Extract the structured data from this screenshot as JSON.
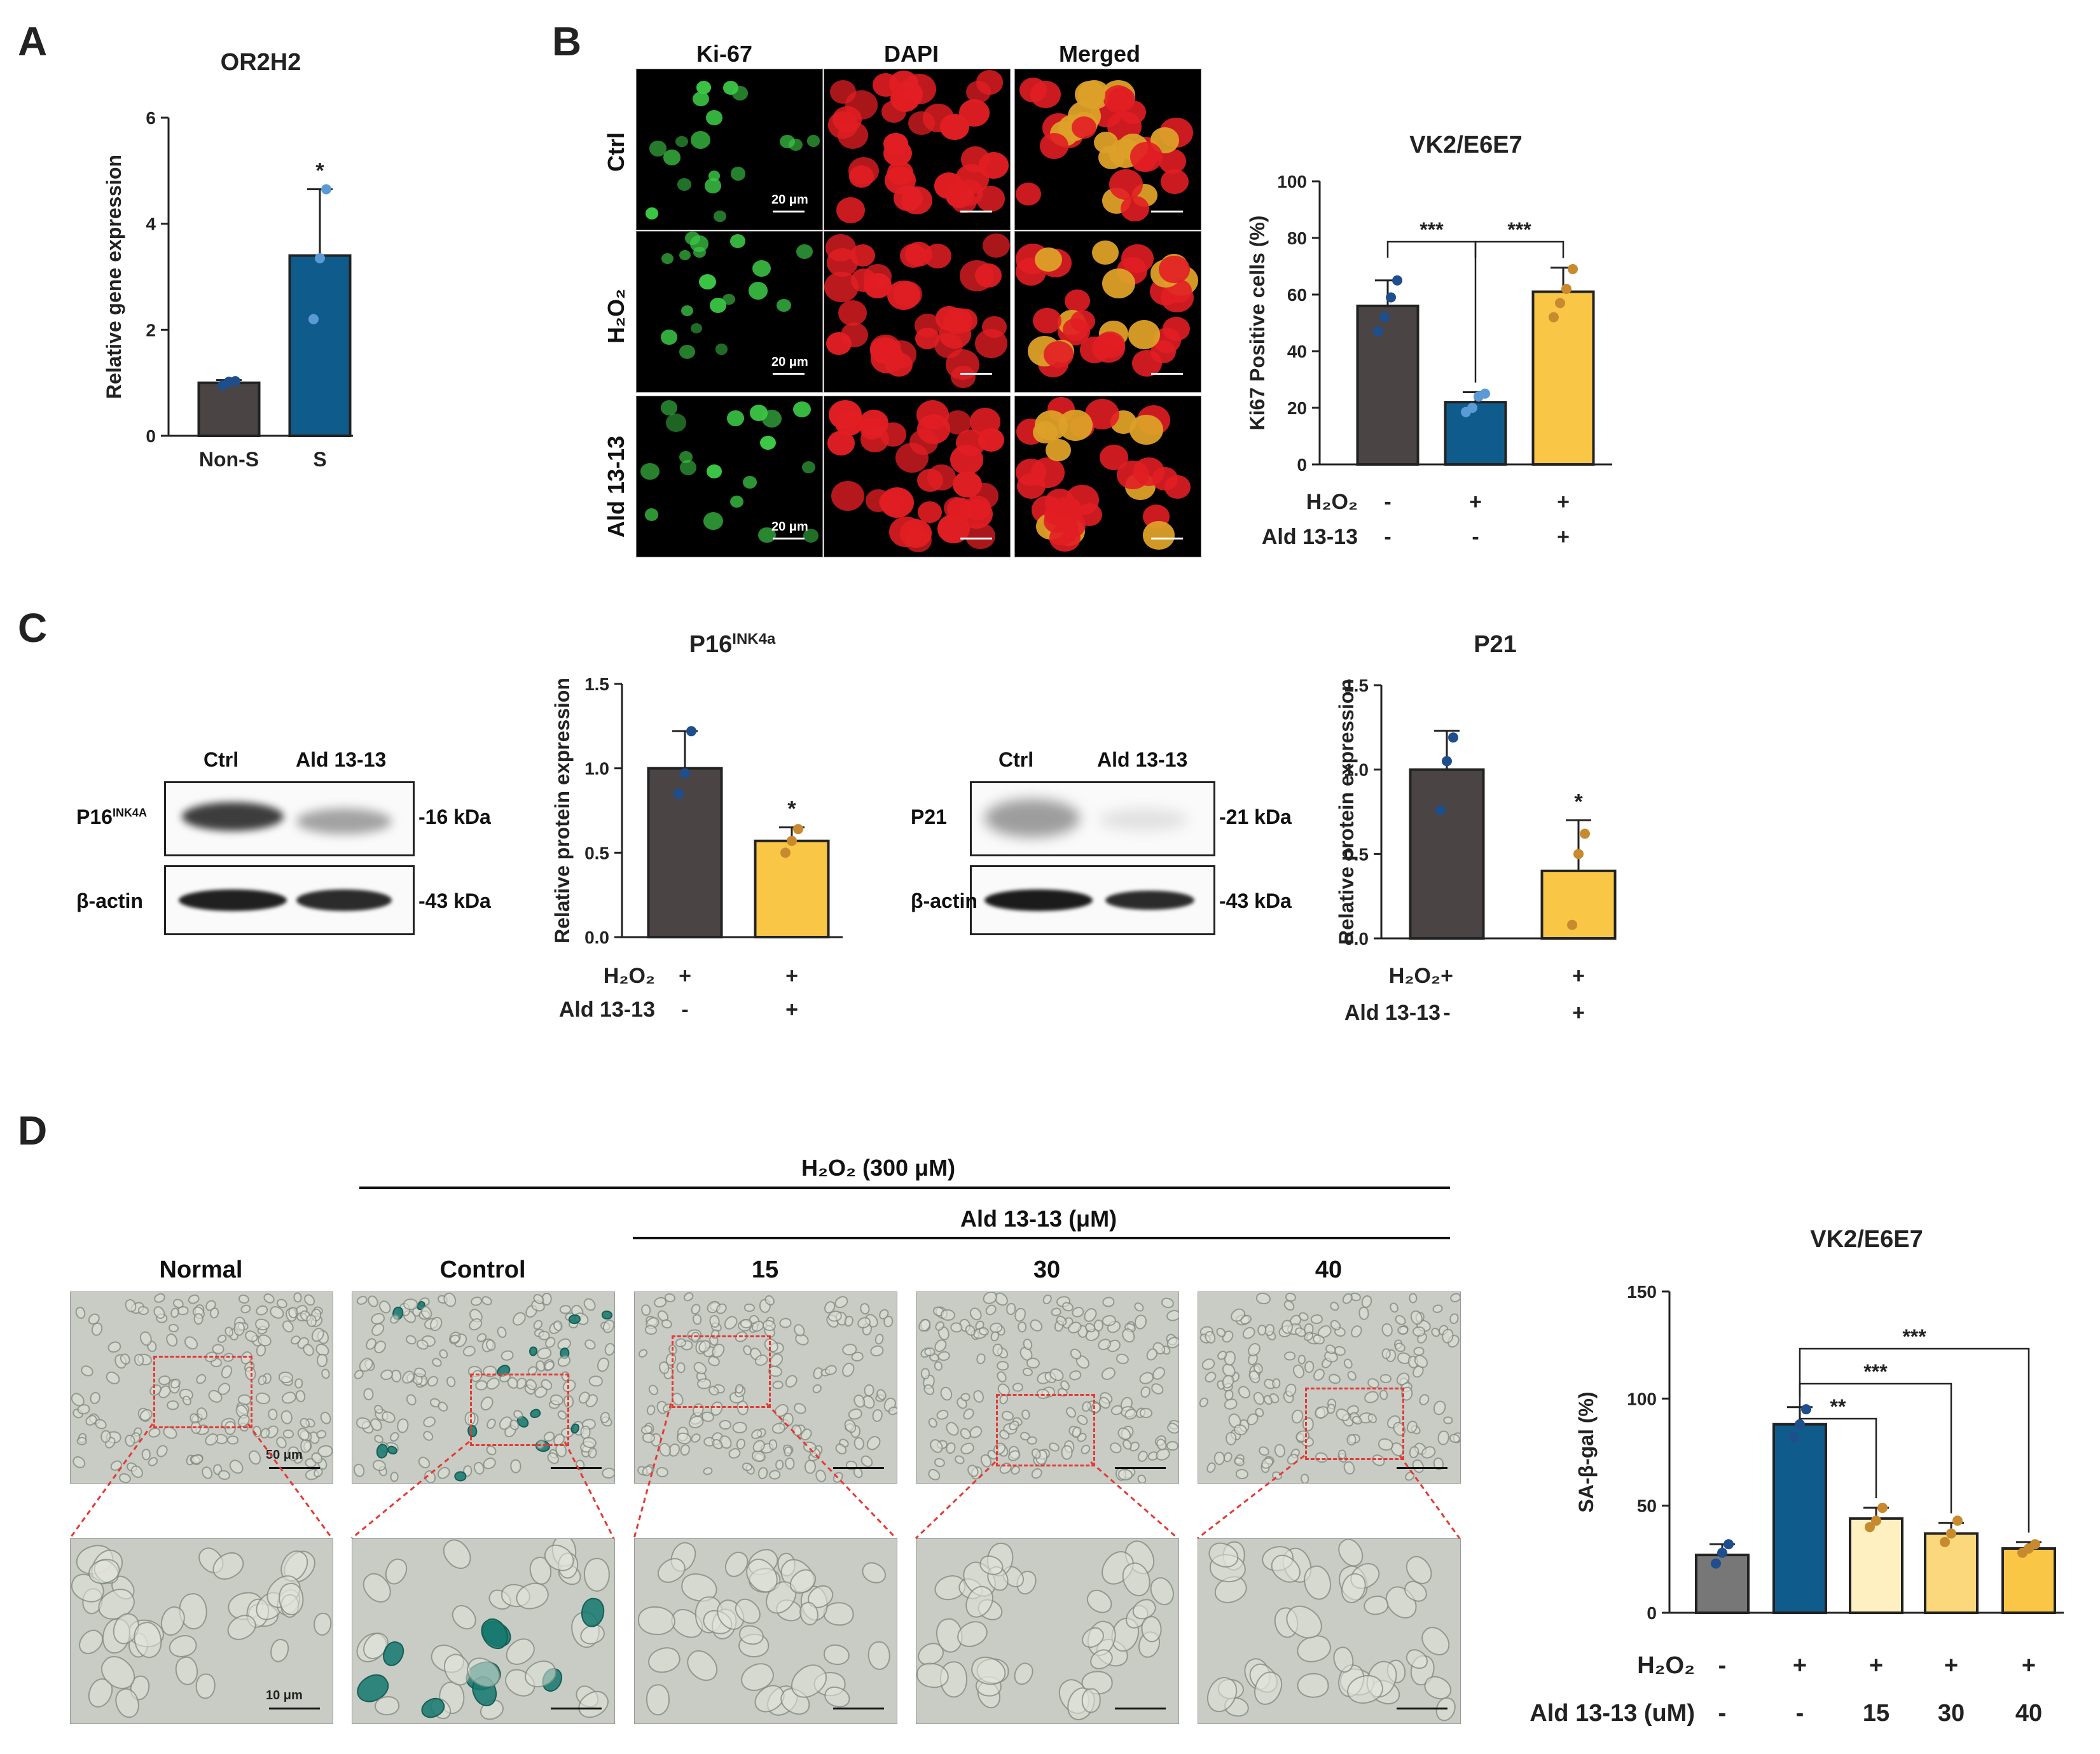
{
  "panels": {
    "A": {
      "letter": "A"
    },
    "B": {
      "letter": "B"
    },
    "C": {
      "letter": "C"
    },
    "D": {
      "letter": "D"
    }
  },
  "microscopy_B": {
    "columns": [
      "Ki-67",
      "DAPI",
      "Merged"
    ],
    "rows": [
      "Ctrl",
      "H₂O₂",
      "Ald 13-13"
    ],
    "scale": "20 μm"
  },
  "blots": {
    "p16": {
      "lanes": [
        "Ctrl",
        "Ald 13-13"
      ],
      "target": "P16",
      "target_sup": "INK4A",
      "control": "β-actin",
      "target_kda": "-16 kDa",
      "control_kda": "-43 kDa"
    },
    "p21": {
      "lanes": [
        "Ctrl",
        "Ald 13-13"
      ],
      "target": "P21",
      "control": "β-actin",
      "target_kda": "-21 kDa",
      "control_kda": "-43 kDa"
    }
  },
  "panel_D": {
    "h2o2_header": "H₂O₂ (300 μM)",
    "ald_header": "Ald 13-13 (μM)",
    "columns": [
      "Normal",
      "Control",
      "15",
      "30",
      "40"
    ],
    "scale_top": "50 μm",
    "scale_bottom": "10 μm"
  },
  "colors": {
    "dark_grey": "#4a4444",
    "blue": "#0f5c8c",
    "yellow": "#f9c646",
    "yellow_pale": "#fff0c2",
    "yellow_mid": "#fbd87c",
    "grey_D": "#777777",
    "blue_dot": "#1f4e8c",
    "lightblue_dot": "#5b9bd5",
    "brown_dot": "#c88a2e"
  },
  "chart_data": [
    {
      "id": "A",
      "type": "bar",
      "title": "OR2H2",
      "ylabel": "Relative gene expression",
      "categories": [
        "Non-S",
        "S"
      ],
      "values": [
        1.0,
        3.4
      ],
      "errors": [
        0.05,
        1.25
      ],
      "points": [
        [
          0.95,
          1.02,
          1.03
        ],
        [
          2.2,
          3.35,
          4.65
        ]
      ],
      "ylim": [
        0,
        6
      ],
      "yticks": [
        "0",
        "2",
        "4",
        "6"
      ],
      "significance": [
        "",
        "*"
      ]
    },
    {
      "id": "B",
      "type": "bar",
      "title": "VK2/E6E7",
      "ylabel": "Ki67 Positive cells (%)",
      "categories": [
        "1",
        "2",
        "3"
      ],
      "values": [
        56,
        22,
        61
      ],
      "errors": [
        9,
        3.5,
        8.5
      ],
      "points": [
        [
          47,
          52,
          59,
          65
        ],
        [
          18.5,
          20,
          24,
          25
        ],
        [
          52,
          57,
          62,
          69
        ]
      ],
      "ylim": [
        0,
        100
      ],
      "yticks": [
        "0",
        "20",
        "40",
        "60",
        "80",
        "100"
      ],
      "brackets": [
        {
          "from": 0,
          "to": 1,
          "label": "***"
        },
        {
          "from": 1,
          "to": 2,
          "label": "***"
        }
      ],
      "condition_rows": [
        {
          "label": "H₂O₂",
          "values": [
            "-",
            "+",
            "+"
          ]
        },
        {
          "label": "Ald 13-13",
          "values": [
            "-",
            "-",
            "+"
          ]
        }
      ]
    },
    {
      "id": "C1",
      "type": "bar",
      "title": "P16",
      "title_sup": "INK4a",
      "ylabel": "Relative protein expression",
      "categories": [
        "1",
        "2"
      ],
      "values": [
        1.0,
        0.57
      ],
      "errors": [
        0.22,
        0.08
      ],
      "points": [
        [
          0.85,
          0.97,
          1.22
        ],
        [
          0.5,
          0.57,
          0.64
        ]
      ],
      "ylim": [
        0,
        1.5
      ],
      "yticks": [
        "0.0",
        "0.5",
        "1.0",
        "1.5"
      ],
      "significance": [
        "",
        "*"
      ],
      "condition_rows": [
        {
          "label": "H₂O₂",
          "values": [
            "+",
            "+"
          ]
        },
        {
          "label": "Ald 13-13",
          "values": [
            "-",
            "+"
          ]
        }
      ]
    },
    {
      "id": "C2",
      "type": "bar",
      "title": "P21",
      "ylabel": "Relative protein expression",
      "categories": [
        "1",
        "2"
      ],
      "values": [
        1.0,
        0.4
      ],
      "errors": [
        0.23,
        0.3
      ],
      "points": [
        [
          0.76,
          1.05,
          1.19
        ],
        [
          0.08,
          0.5,
          0.62
        ]
      ],
      "ylim": [
        0,
        1.5
      ],
      "yticks": [
        "0.0",
        "0.5",
        "1.0",
        "1.5"
      ],
      "significance": [
        "",
        "*"
      ],
      "condition_rows": [
        {
          "label": "H₂O₂",
          "values": [
            "+",
            "+"
          ]
        },
        {
          "label": "Ald 13-13",
          "values": [
            "-",
            "+"
          ]
        }
      ]
    },
    {
      "id": "D",
      "type": "bar",
      "title": "VK2/E6E7",
      "ylabel": "SA-β-gal (%)",
      "categories": [
        "1",
        "2",
        "3",
        "4",
        "5"
      ],
      "values": [
        27,
        88,
        44,
        37,
        30
      ],
      "errors": [
        5,
        8,
        5,
        5,
        3
      ],
      "points": [
        [
          23,
          28,
          32
        ],
        [
          82,
          88,
          95
        ],
        [
          40,
          43,
          49
        ],
        [
          33,
          37,
          43
        ],
        [
          28,
          30,
          32
        ]
      ],
      "ylim": [
        0,
        150
      ],
      "yticks": [
        "0",
        "50",
        "100",
        "150"
      ],
      "brackets": [
        {
          "from": 1,
          "to": 2,
          "label": "**"
        },
        {
          "from": 1,
          "to": 3,
          "label": "***"
        },
        {
          "from": 1,
          "to": 4,
          "label": "***"
        }
      ],
      "condition_rows": [
        {
          "label": "H₂O₂",
          "values": [
            "-",
            "+",
            "+",
            "+",
            "+"
          ]
        },
        {
          "label": "Ald 13-13  (uM)",
          "values": [
            "-",
            "-",
            "15",
            "30",
            "40"
          ]
        }
      ]
    }
  ]
}
